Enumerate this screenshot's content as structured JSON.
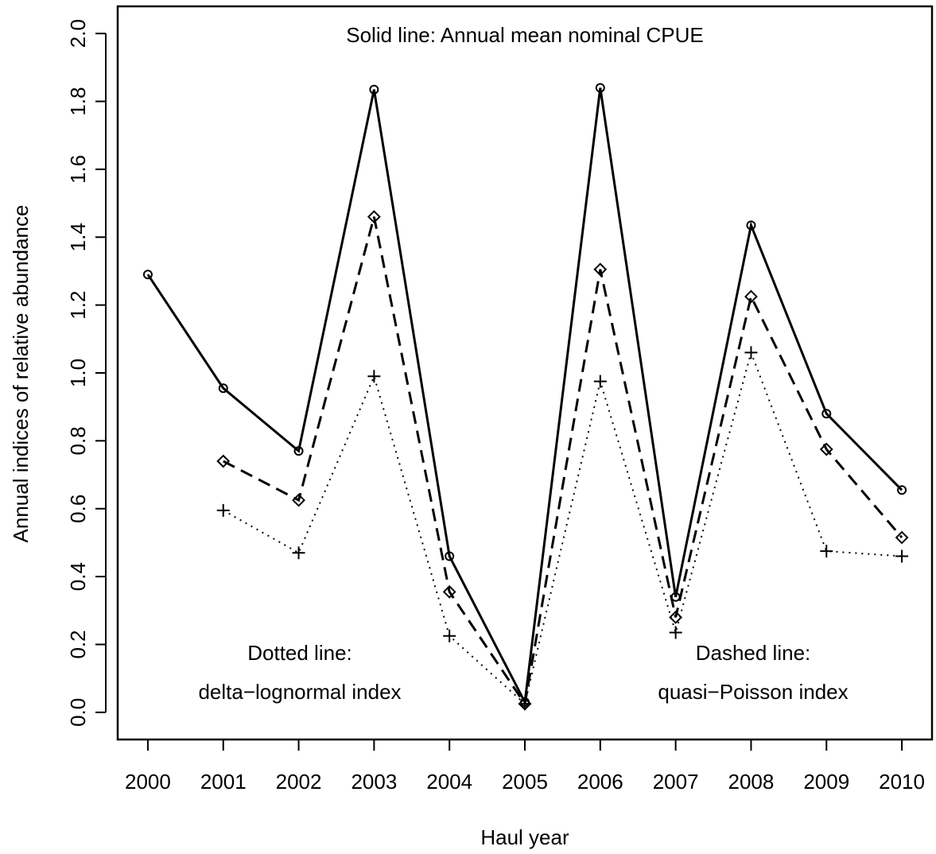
{
  "chart_data": {
    "type": "line",
    "x_label": "Haul year",
    "y_label": "Annual indices of relative abundance",
    "annotations": [
      "Solid line: Annual mean nominal CPUE",
      "Dotted line:",
      "delta−lognormal index",
      "Dashed line:",
      "quasi−Poisson index"
    ],
    "x": [
      2000,
      2001,
      2002,
      2003,
      2004,
      2005,
      2006,
      2007,
      2008,
      2009,
      2010
    ],
    "series": [
      {
        "color": "#000000",
        "dash": "solid",
        "marker": "circle",
        "values": [
          1.29,
          0.955,
          0.77,
          1.835,
          0.46,
          0.03,
          1.84,
          0.34,
          1.435,
          0.88,
          0.655
        ]
      },
      {
        "color": "#000000",
        "dash": "dashed",
        "marker": "diamond",
        "values": [
          null,
          0.74,
          0.625,
          1.46,
          0.355,
          0.025,
          1.305,
          0.28,
          1.225,
          0.775,
          0.515
        ]
      },
      {
        "color": "#000000",
        "dash": "dotted",
        "marker": "plus",
        "values": [
          null,
          0.595,
          0.47,
          0.99,
          0.225,
          0.025,
          0.975,
          0.235,
          1.06,
          0.475,
          0.46
        ]
      }
    ],
    "xlim": [
      1999.6,
      2010.4
    ],
    "xticks": [
      2000,
      2001,
      2002,
      2003,
      2004,
      2005,
      2006,
      2007,
      2008,
      2009,
      2010
    ],
    "ylim": [
      -0.08,
      2.08
    ],
    "yticks": [
      {
        "value": 0,
        "label": "0.0"
      },
      0.2,
      0.4,
      0.6,
      0.8,
      {
        "value": 1,
        "label": "1.0"
      },
      1.2,
      1.4,
      1.6,
      1.8,
      {
        "value": 2,
        "label": "2.0"
      }
    ],
    "grid": false
  }
}
